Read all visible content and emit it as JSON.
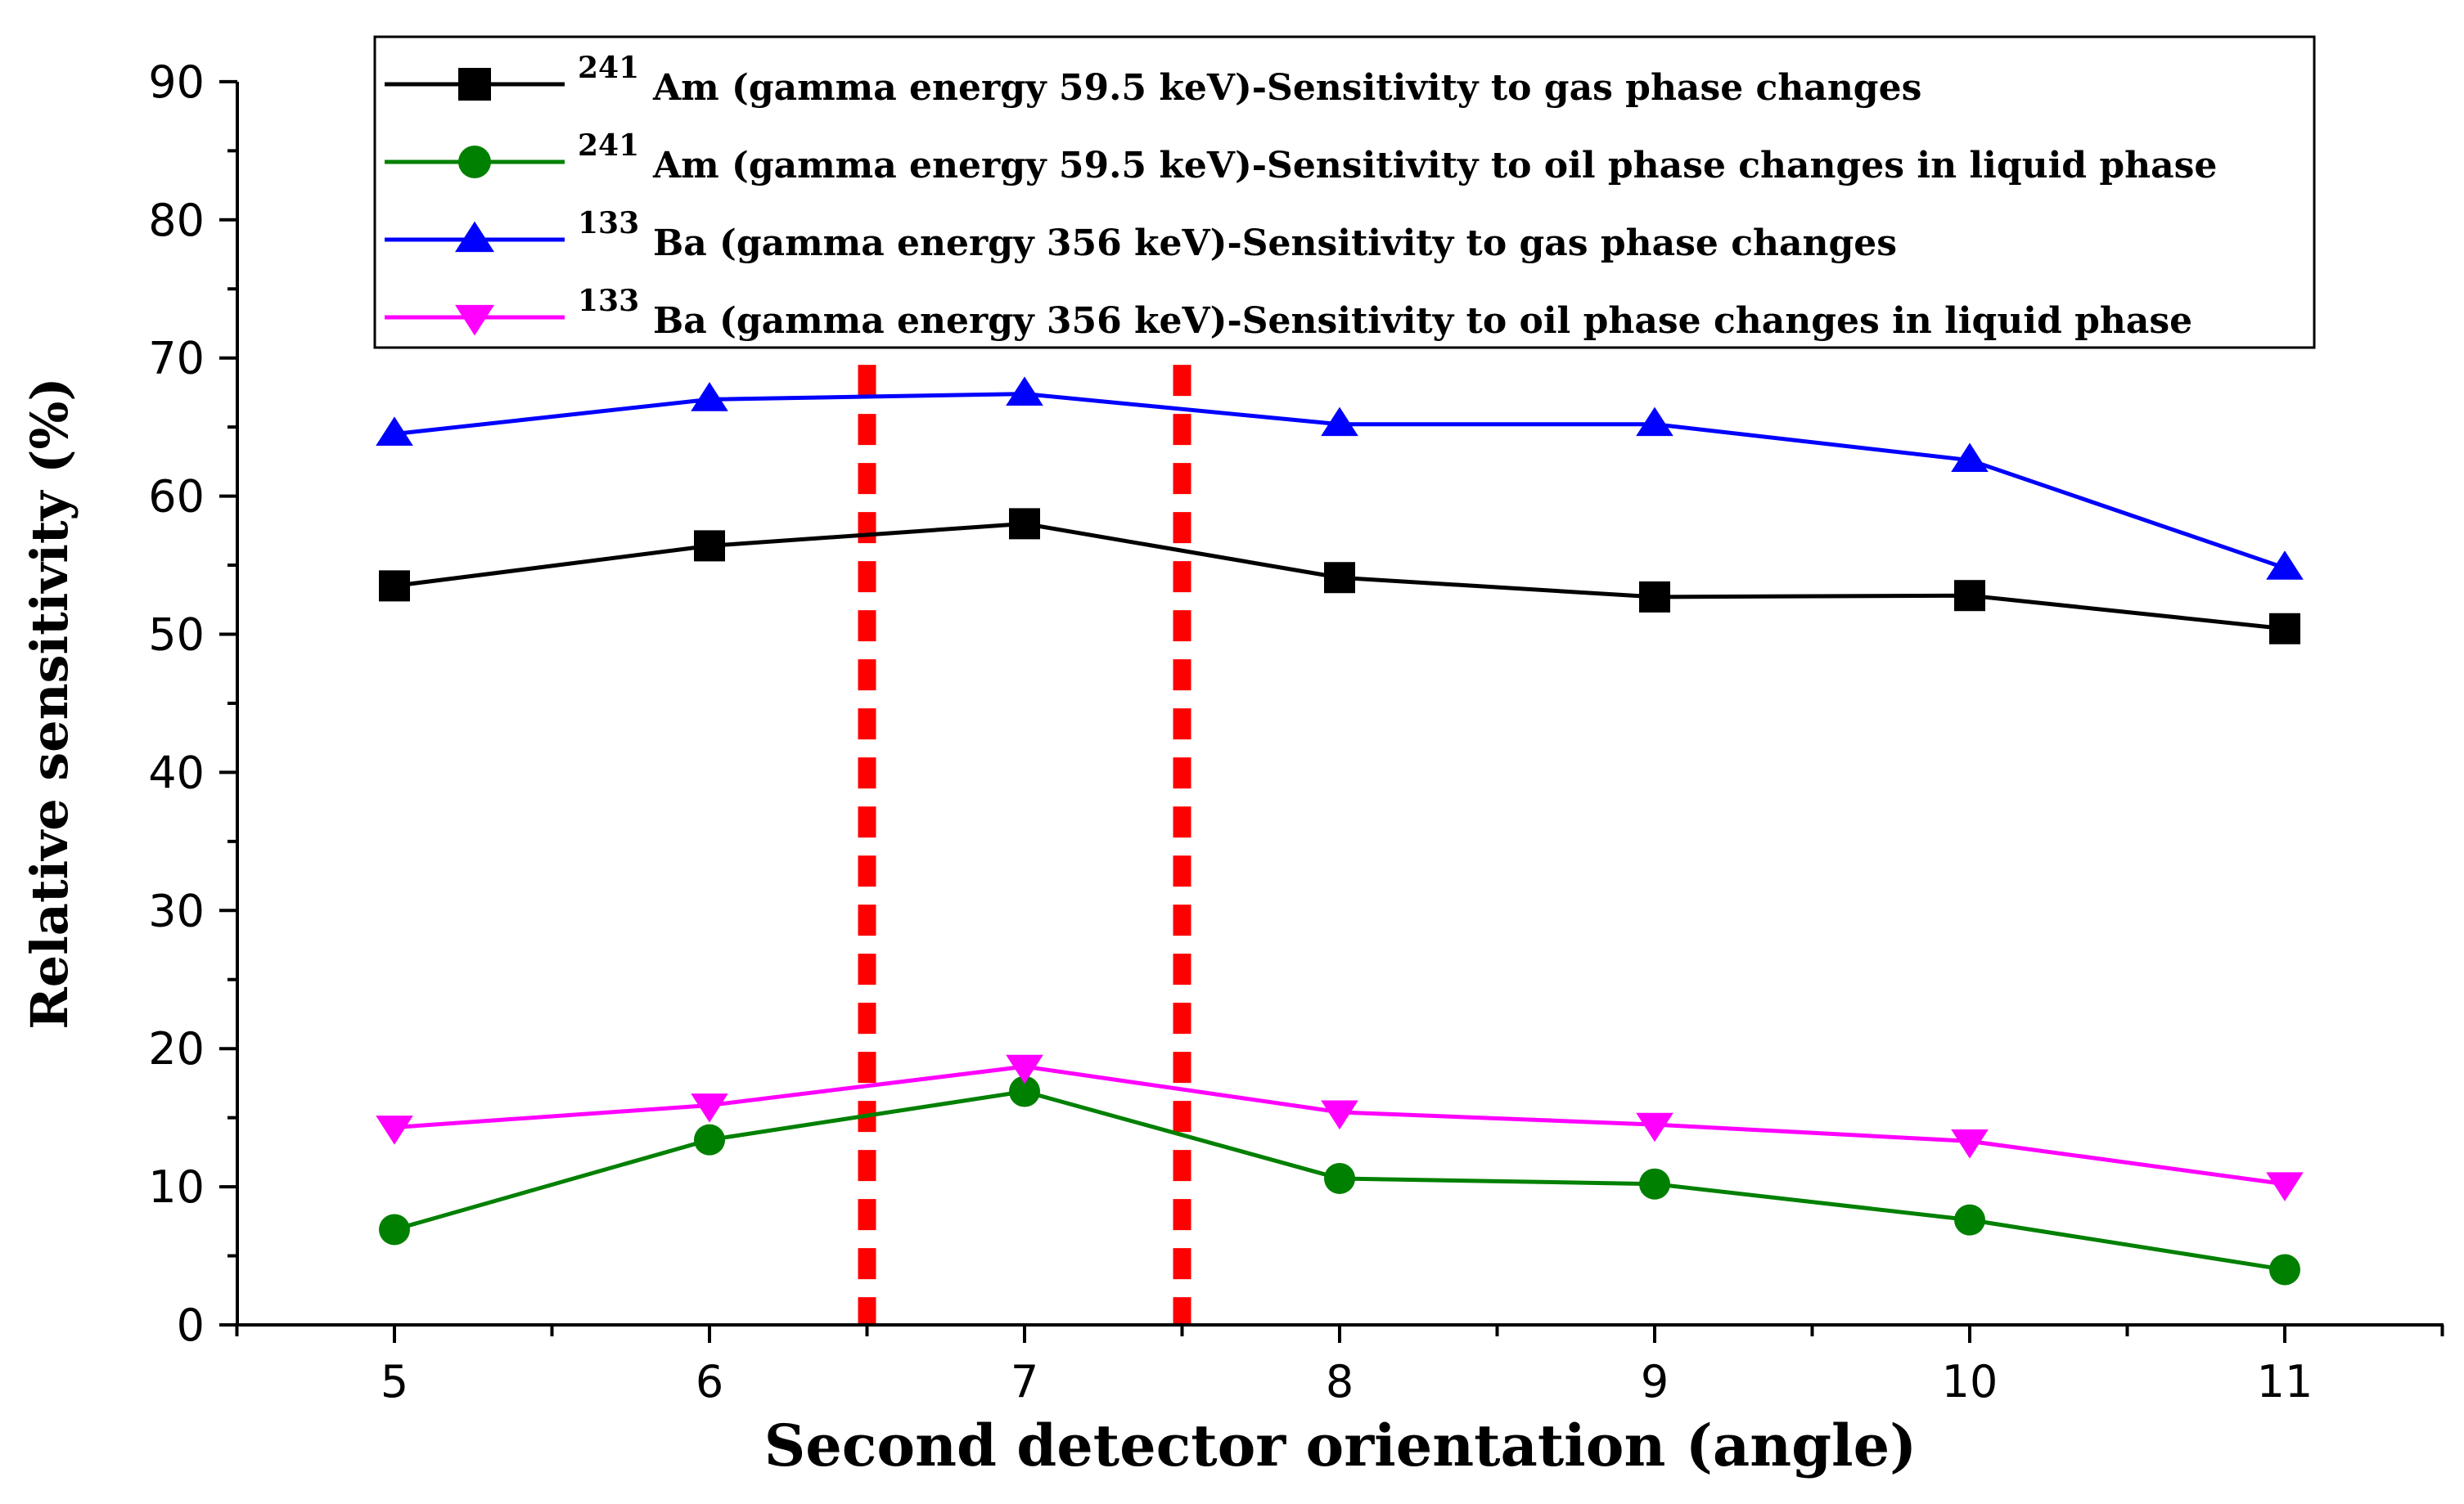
{
  "chart_data": {
    "type": "line",
    "title": "",
    "xlabel": "Second detector orientation (angle)",
    "ylabel": "Relative sensitivity (%)",
    "x": [
      5,
      6,
      7,
      8,
      9,
      10,
      11
    ],
    "x_tick_labels": [
      "5",
      "6",
      "7",
      "8",
      "9",
      "10",
      "11"
    ],
    "xlim": [
      4.5,
      11.5
    ],
    "ylim": [
      0,
      90
    ],
    "y_ticks": [
      0,
      10,
      20,
      30,
      40,
      50,
      60,
      70,
      80,
      90
    ],
    "y_tick_labels": [
      "0",
      "10",
      "20",
      "30",
      "40",
      "50",
      "60",
      "70",
      "80",
      "90"
    ],
    "legend_position": "top-right",
    "series": [
      {
        "name": "241Am gas",
        "legend_sup": "241",
        "legend_main": "Am (gamma energy 59.5 keV)-Sensitivity to gas phase changes",
        "color": "#000000",
        "marker": "square",
        "values": [
          53.5,
          56.4,
          58.0,
          54.1,
          52.7,
          52.8,
          50.4
        ]
      },
      {
        "name": "241Am oil",
        "legend_sup": "241",
        "legend_main": "Am (gamma energy 59.5 keV)-Sensitivity to oil phase changes in liquid phase",
        "color": "#008000",
        "marker": "circle",
        "values": [
          6.9,
          13.4,
          16.9,
          10.6,
          10.2,
          7.6,
          4.0
        ]
      },
      {
        "name": "133Ba gas",
        "legend_sup": "133",
        "legend_main": "Ba (gamma energy 356 keV)-Sensitivity to gas phase changes",
        "color": "#0000FF",
        "marker": "triangle-up",
        "values": [
          64.5,
          67.0,
          67.4,
          65.2,
          65.2,
          62.6,
          54.8
        ]
      },
      {
        "name": "133Ba oil",
        "legend_sup": "133",
        "legend_main": "Ba (gamma energy 356 keV)-Sensitivity to oil phase changes in liquid phase",
        "color": "#FF00FF",
        "marker": "triangle-down",
        "values": [
          14.3,
          15.9,
          18.7,
          15.4,
          14.5,
          13.3,
          10.2
        ]
      }
    ],
    "reference_lines": [
      {
        "x": 6.5,
        "color": "#FF0000",
        "style": "dashed"
      },
      {
        "x": 7.5,
        "color": "#FF0000",
        "style": "dashed"
      }
    ]
  }
}
